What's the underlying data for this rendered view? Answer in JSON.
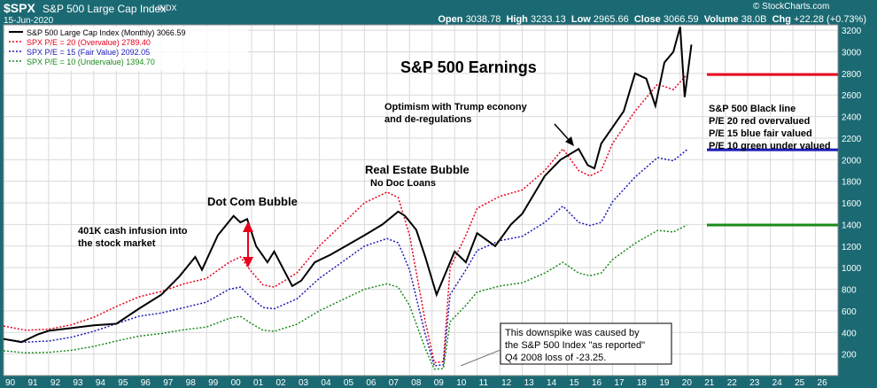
{
  "header": {
    "ticker": "$SPX",
    "description": "S&P 500 Large Cap Index",
    "exchange": "INDX",
    "watermark": "© StockCharts.com",
    "date": "15-Jun-2020",
    "open_label": "Open",
    "open": "3038.78",
    "high_label": "High",
    "high": "3233.13",
    "low_label": "Low",
    "low": "2965.66",
    "close_label": "Close",
    "close": "3066.59",
    "volume_label": "Volume",
    "volume": "38.0B",
    "chg_label": "Chg",
    "chg": "+22.28 (+0.73%)"
  },
  "colors": {
    "frame": "#1b6a73",
    "spx": "#000000",
    "pe20": "#e8001c",
    "pe15": "#1a1ab8",
    "pe10": "#1a8a1a",
    "grid": "#d9d9d9"
  },
  "chart_data": {
    "type": "line",
    "title": "S&P 500 Earnings",
    "ylim": [
      0,
      3250
    ],
    "y_ticks": [
      200,
      400,
      600,
      800,
      1000,
      1200,
      1400,
      1600,
      1800,
      2000,
      2200,
      2400,
      2600,
      2800,
      3000,
      3200
    ],
    "xlim": [
      1990,
      2027
    ],
    "x_ticks": [
      "90",
      "91",
      "92",
      "93",
      "94",
      "95",
      "96",
      "97",
      "98",
      "99",
      "00",
      "01",
      "02",
      "03",
      "04",
      "05",
      "06",
      "07",
      "08",
      "09",
      "10",
      "11",
      "12",
      "13",
      "14",
      "15",
      "16",
      "17",
      "18",
      "19",
      "20",
      "21",
      "22",
      "23",
      "24",
      "25",
      "26"
    ],
    "legend": [
      {
        "text": "S&P 500 Large Cap Index (Monthly) 3066.59",
        "color": "#000000"
      },
      {
        "text": "SPX P/E = 20 (Overvalue) 2789.40",
        "color": "#e8001c"
      },
      {
        "text": "SPX P/E = 15 (Fair Value) 2092.05",
        "color": "#1a1ab8"
      },
      {
        "text": "SPX P/E = 10 (Undervalue) 1394.70",
        "color": "#1a8a1a"
      }
    ],
    "series": [
      {
        "name": "S&P 500 Large Cap Index (Monthly)",
        "color": "#000000",
        "style": "solid",
        "points": [
          [
            1990,
            340
          ],
          [
            1990.8,
            310
          ],
          [
            1991.5,
            380
          ],
          [
            1992,
            415
          ],
          [
            1993,
            440
          ],
          [
            1994,
            465
          ],
          [
            1995,
            480
          ],
          [
            1996,
            620
          ],
          [
            1997,
            750
          ],
          [
            1997.8,
            920
          ],
          [
            1998.5,
            1100
          ],
          [
            1998.8,
            980
          ],
          [
            1999.5,
            1300
          ],
          [
            2000.2,
            1480
          ],
          [
            2000.5,
            1420
          ],
          [
            2000.8,
            1450
          ],
          [
            2001.2,
            1200
          ],
          [
            2001.7,
            1050
          ],
          [
            2002,
            1150
          ],
          [
            2002.5,
            950
          ],
          [
            2002.8,
            830
          ],
          [
            2003.2,
            880
          ],
          [
            2003.8,
            1050
          ],
          [
            2004.5,
            1120
          ],
          [
            2005,
            1180
          ],
          [
            2006,
            1300
          ],
          [
            2006.8,
            1400
          ],
          [
            2007.5,
            1520
          ],
          [
            2007.8,
            1480
          ],
          [
            2008.3,
            1350
          ],
          [
            2008.7,
            1100
          ],
          [
            2009.2,
            750
          ],
          [
            2009.6,
            950
          ],
          [
            2010,
            1150
          ],
          [
            2010.5,
            1050
          ],
          [
            2011,
            1320
          ],
          [
            2011.8,
            1200
          ],
          [
            2012.5,
            1400
          ],
          [
            2013,
            1500
          ],
          [
            2014,
            1850
          ],
          [
            2014.7,
            2000
          ],
          [
            2015.5,
            2100
          ],
          [
            2015.9,
            1950
          ],
          [
            2016.2,
            1920
          ],
          [
            2016.5,
            2150
          ],
          [
            2017,
            2300
          ],
          [
            2017.5,
            2450
          ],
          [
            2018,
            2800
          ],
          [
            2018.5,
            2750
          ],
          [
            2018.9,
            2500
          ],
          [
            2019.3,
            2900
          ],
          [
            2019.7,
            3000
          ],
          [
            2020,
            3230
          ],
          [
            2020.2,
            2580
          ],
          [
            2020.5,
            3066
          ]
        ]
      },
      {
        "name": "SPX P/E = 20 (Overvalue)",
        "color": "#e8001c",
        "style": "dotted",
        "points": [
          [
            1990,
            460
          ],
          [
            1991,
            420
          ],
          [
            1992,
            430
          ],
          [
            1993,
            470
          ],
          [
            1994,
            540
          ],
          [
            1995,
            640
          ],
          [
            1996,
            730
          ],
          [
            1997,
            780
          ],
          [
            1998,
            850
          ],
          [
            1999,
            900
          ],
          [
            2000,
            1050
          ],
          [
            2000.5,
            1100
          ],
          [
            2001,
            960
          ],
          [
            2001.5,
            840
          ],
          [
            2002,
            820
          ],
          [
            2003,
            950
          ],
          [
            2004,
            1200
          ],
          [
            2005,
            1400
          ],
          [
            2006,
            1600
          ],
          [
            2007,
            1700
          ],
          [
            2007.5,
            1650
          ],
          [
            2008,
            1300
          ],
          [
            2008.7,
            500
          ],
          [
            2009.1,
            120
          ],
          [
            2009.5,
            130
          ],
          [
            2009.8,
            1000
          ],
          [
            2010.5,
            1300
          ],
          [
            2011,
            1550
          ],
          [
            2012,
            1660
          ],
          [
            2013,
            1720
          ],
          [
            2014,
            1900
          ],
          [
            2014.8,
            2100
          ],
          [
            2015.5,
            1900
          ],
          [
            2016,
            1850
          ],
          [
            2016.5,
            1900
          ],
          [
            2017,
            2150
          ],
          [
            2018,
            2450
          ],
          [
            2019,
            2700
          ],
          [
            2019.7,
            2650
          ],
          [
            2020.3,
            2789
          ]
        ]
      },
      {
        "name": "SPX P/E = 15 (Fair Value)",
        "color": "#1a1ab8",
        "style": "dotted",
        "points": [
          [
            1990,
            340
          ],
          [
            1991,
            310
          ],
          [
            1992,
            320
          ],
          [
            1993,
            355
          ],
          [
            1994,
            410
          ],
          [
            1995,
            480
          ],
          [
            1996,
            550
          ],
          [
            1997,
            580
          ],
          [
            1998,
            630
          ],
          [
            1999,
            680
          ],
          [
            2000,
            800
          ],
          [
            2000.5,
            820
          ],
          [
            2001,
            720
          ],
          [
            2001.5,
            630
          ],
          [
            2002,
            620
          ],
          [
            2003,
            710
          ],
          [
            2004,
            900
          ],
          [
            2005,
            1050
          ],
          [
            2006,
            1200
          ],
          [
            2007,
            1270
          ],
          [
            2007.5,
            1230
          ],
          [
            2008,
            980
          ],
          [
            2008.7,
            380
          ],
          [
            2009.1,
            90
          ],
          [
            2009.5,
            100
          ],
          [
            2009.8,
            750
          ],
          [
            2010.5,
            980
          ],
          [
            2011,
            1160
          ],
          [
            2012,
            1250
          ],
          [
            2013,
            1290
          ],
          [
            2014,
            1420
          ],
          [
            2014.8,
            1570
          ],
          [
            2015.5,
            1420
          ],
          [
            2016,
            1390
          ],
          [
            2016.5,
            1420
          ],
          [
            2017,
            1610
          ],
          [
            2018,
            1840
          ],
          [
            2019,
            2020
          ],
          [
            2019.7,
            1990
          ],
          [
            2020.3,
            2092
          ]
        ]
      },
      {
        "name": "SPX P/E = 10 (Undervalue)",
        "color": "#1a8a1a",
        "style": "dotted",
        "points": [
          [
            1990,
            230
          ],
          [
            1991,
            210
          ],
          [
            1992,
            215
          ],
          [
            1993,
            235
          ],
          [
            1994,
            270
          ],
          [
            1995,
            320
          ],
          [
            1996,
            365
          ],
          [
            1997,
            390
          ],
          [
            1998,
            425
          ],
          [
            1999,
            450
          ],
          [
            2000,
            530
          ],
          [
            2000.5,
            550
          ],
          [
            2001,
            480
          ],
          [
            2001.5,
            420
          ],
          [
            2002,
            410
          ],
          [
            2003,
            475
          ],
          [
            2004,
            600
          ],
          [
            2005,
            700
          ],
          [
            2006,
            800
          ],
          [
            2007,
            850
          ],
          [
            2007.5,
            820
          ],
          [
            2008,
            650
          ],
          [
            2008.7,
            250
          ],
          [
            2009.1,
            60
          ],
          [
            2009.5,
            65
          ],
          [
            2009.8,
            500
          ],
          [
            2010.5,
            650
          ],
          [
            2011,
            775
          ],
          [
            2012,
            830
          ],
          [
            2013,
            860
          ],
          [
            2014,
            950
          ],
          [
            2014.8,
            1050
          ],
          [
            2015.5,
            950
          ],
          [
            2016,
            925
          ],
          [
            2016.5,
            950
          ],
          [
            2017,
            1075
          ],
          [
            2018,
            1225
          ],
          [
            2019,
            1345
          ],
          [
            2019.7,
            1330
          ],
          [
            2020.3,
            1394
          ]
        ]
      }
    ],
    "reference_lines": [
      {
        "value": 2789.4,
        "color": "#e8001c"
      },
      {
        "value": 2092.05,
        "color": "#1a1ab8"
      },
      {
        "value": 1394.7,
        "color": "#1a8a1a"
      }
    ],
    "annotations": {
      "bubble_dotcom": "Dot Com Bubble",
      "k401_line1": "401K cash infusion into",
      "k401_line2": "the stock market",
      "realestate_line1": "Real Estate Bubble",
      "realestate_line2": "No Doc Loans",
      "trump_line1": "Optimism with Trump econony",
      "trump_line2": "and de-regulations",
      "key_line1": "S&P 500 Black line",
      "key_line2": "P/E 20 red overvalued",
      "key_line3": "P/E 15 blue fair valued",
      "key_line4": "P/E 10 green under valued",
      "note_line1": "This downspike was caused by",
      "note_line2": "the S&P 500 Index \"as reported\"",
      "note_line3": "Q4 2008 loss of -23.25."
    }
  }
}
